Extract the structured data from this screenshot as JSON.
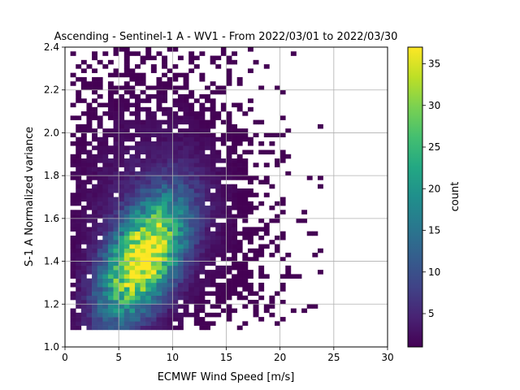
{
  "chart_data": {
    "type": "heatmap",
    "title": "Ascending - Sentinel-1 A - WV1 - From 2022/03/01 to 2022/03/30",
    "xlabel": "ECMWF Wind Speed [m/s]",
    "ylabel": "S-1 A Normalized variance",
    "xlim": [
      0,
      30
    ],
    "ylim": [
      1.0,
      2.4
    ],
    "xticks": [
      "0",
      "5",
      "10",
      "15",
      "20",
      "25",
      "30"
    ],
    "yticks": [
      "1.0",
      "1.2",
      "1.4",
      "1.6",
      "1.8",
      "2.0",
      "2.2",
      "2.4"
    ],
    "grid": true,
    "colormap": "viridis",
    "colorbar": {
      "label": "count",
      "range": [
        1,
        37
      ],
      "ticks": [
        "5",
        "10",
        "15",
        "20",
        "25",
        "30",
        "35"
      ]
    },
    "bins": {
      "x_width_ms": 0.5,
      "y_width": 0.02
    },
    "density_model": {
      "peak_count": 37,
      "peak_wind_speed": 7.2,
      "peak_variance": 1.41,
      "core_sigma_wind": 2.6,
      "core_sigma_variance": 0.16,
      "occupied_wind_range": [
        0.3,
        24.5
      ],
      "occupied_variance_range": [
        1.08,
        2.4
      ]
    }
  }
}
